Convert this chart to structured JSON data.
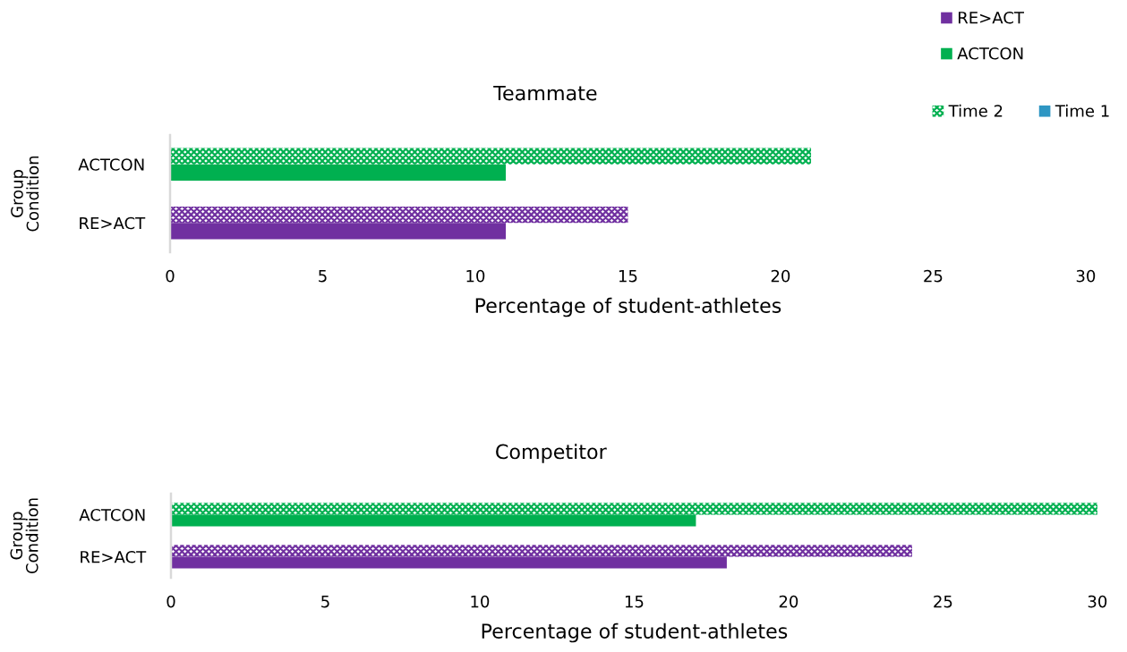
{
  "chart_data": [
    {
      "type": "bar",
      "orientation": "horizontal",
      "title": "Teammate",
      "xlabel": "Percentage of student-athletes",
      "ylabel": "Group\nCondition",
      "categories": [
        "ACTCON",
        "RE>ACT"
      ],
      "series": [
        {
          "name": "Time 2",
          "color": "#00b050",
          "colors": [
            "#00b050",
            "#7030a0"
          ],
          "values": [
            21,
            15
          ]
        },
        {
          "name": "Time 1",
          "color": "#2e96c3",
          "colors": [
            "#00b050",
            "#7030a0"
          ],
          "values": [
            11,
            11
          ]
        }
      ],
      "xlim": [
        0,
        30
      ],
      "xticks": [
        0,
        5,
        10,
        15,
        20,
        25,
        30
      ],
      "legend": "top right"
    },
    {
      "type": "bar",
      "orientation": "horizontal",
      "title": "Competitor",
      "xlabel": "Percentage of student-athletes",
      "ylabel": "Group\nCondition",
      "categories": [
        "ACTCON",
        "RE>ACT"
      ],
      "series": [
        {
          "colors": [
            "#00b050",
            "#7030a0"
          ],
          "values": [
            30,
            24
          ]
        },
        {
          "colors": [
            "#00b050",
            "#7030a0"
          ],
          "values": [
            17,
            18
          ]
        }
      ],
      "xlim": [
        0,
        30
      ],
      "xticks": [
        0,
        5,
        10,
        15,
        20,
        25,
        30
      ]
    }
  ]
}
